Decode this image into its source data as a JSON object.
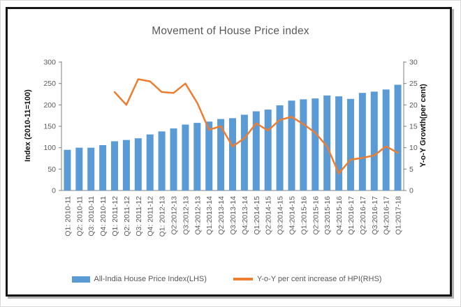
{
  "chart_data": {
    "type": "combo",
    "title": "Movement of House Price index",
    "grid": false,
    "legend_position": "bottom",
    "categories": [
      "Q1: 2010-11",
      "Q2: 2010-11",
      "Q3: 2010-11",
      "Q4: 2010-11",
      "Q1: 2011-12",
      "Q2: 2011-12",
      "Q3: 2011-12",
      "Q4: 2011-12",
      "Q1: 2012-13",
      "Q2:2012-13",
      "Q3:2012-13",
      "Q4:2012-13",
      "Q1:2013-14",
      "Q2:2013-14",
      "Q3:2013-14",
      "Q4:2013-14",
      "Q1:2014-15",
      "Q2:2014-15",
      "Q3:2014-15",
      "Q4:2014-15",
      "Q1:2015-16",
      "Q2:2015-16",
      "Q3:2015-16",
      "Q4:2015-16",
      "Q1:2016-17",
      "Q2:2016-17",
      "Q3:2016-17",
      "Q4:2016-17",
      "Q1:2017-18"
    ],
    "series": [
      {
        "name": "All-India House Price Index(LHS)",
        "type": "bar",
        "axis": "left",
        "color": "#5B9BD5",
        "values": [
          95,
          100,
          100,
          106,
          115,
          118,
          122,
          131,
          138,
          145,
          154,
          158,
          161,
          167,
          169,
          177,
          185,
          189,
          199,
          210,
          213,
          215,
          222,
          220,
          214,
          228,
          231,
          236,
          247
        ]
      },
      {
        "name": "Y-o-Y per cent increase of HPI(RHS)",
        "type": "line",
        "axis": "right",
        "color": "#ED7D31",
        "values": [
          null,
          null,
          null,
          null,
          23,
          20,
          26,
          25.5,
          23,
          22.8,
          25,
          20.5,
          14.2,
          15,
          10.3,
          12.2,
          15.7,
          14,
          16.5,
          17.2,
          15.5,
          13.5,
          10.3,
          4,
          7.2,
          7.6,
          8.2,
          10.3,
          8.8
        ]
      }
    ],
    "left_axis": {
      "title": "Index (2010-11=100)",
      "min": 0,
      "max": 300,
      "step": 50,
      "ticks": [
        0,
        50,
        100,
        150,
        200,
        250,
        300
      ]
    },
    "right_axis": {
      "title": "Y-o-Y Growth(per cent)",
      "min": 0,
      "max": 30,
      "step": 5,
      "ticks": [
        0,
        5,
        10,
        15,
        20,
        25,
        30
      ]
    },
    "axis_color": "#808080",
    "tick_label_color": "#595959"
  }
}
